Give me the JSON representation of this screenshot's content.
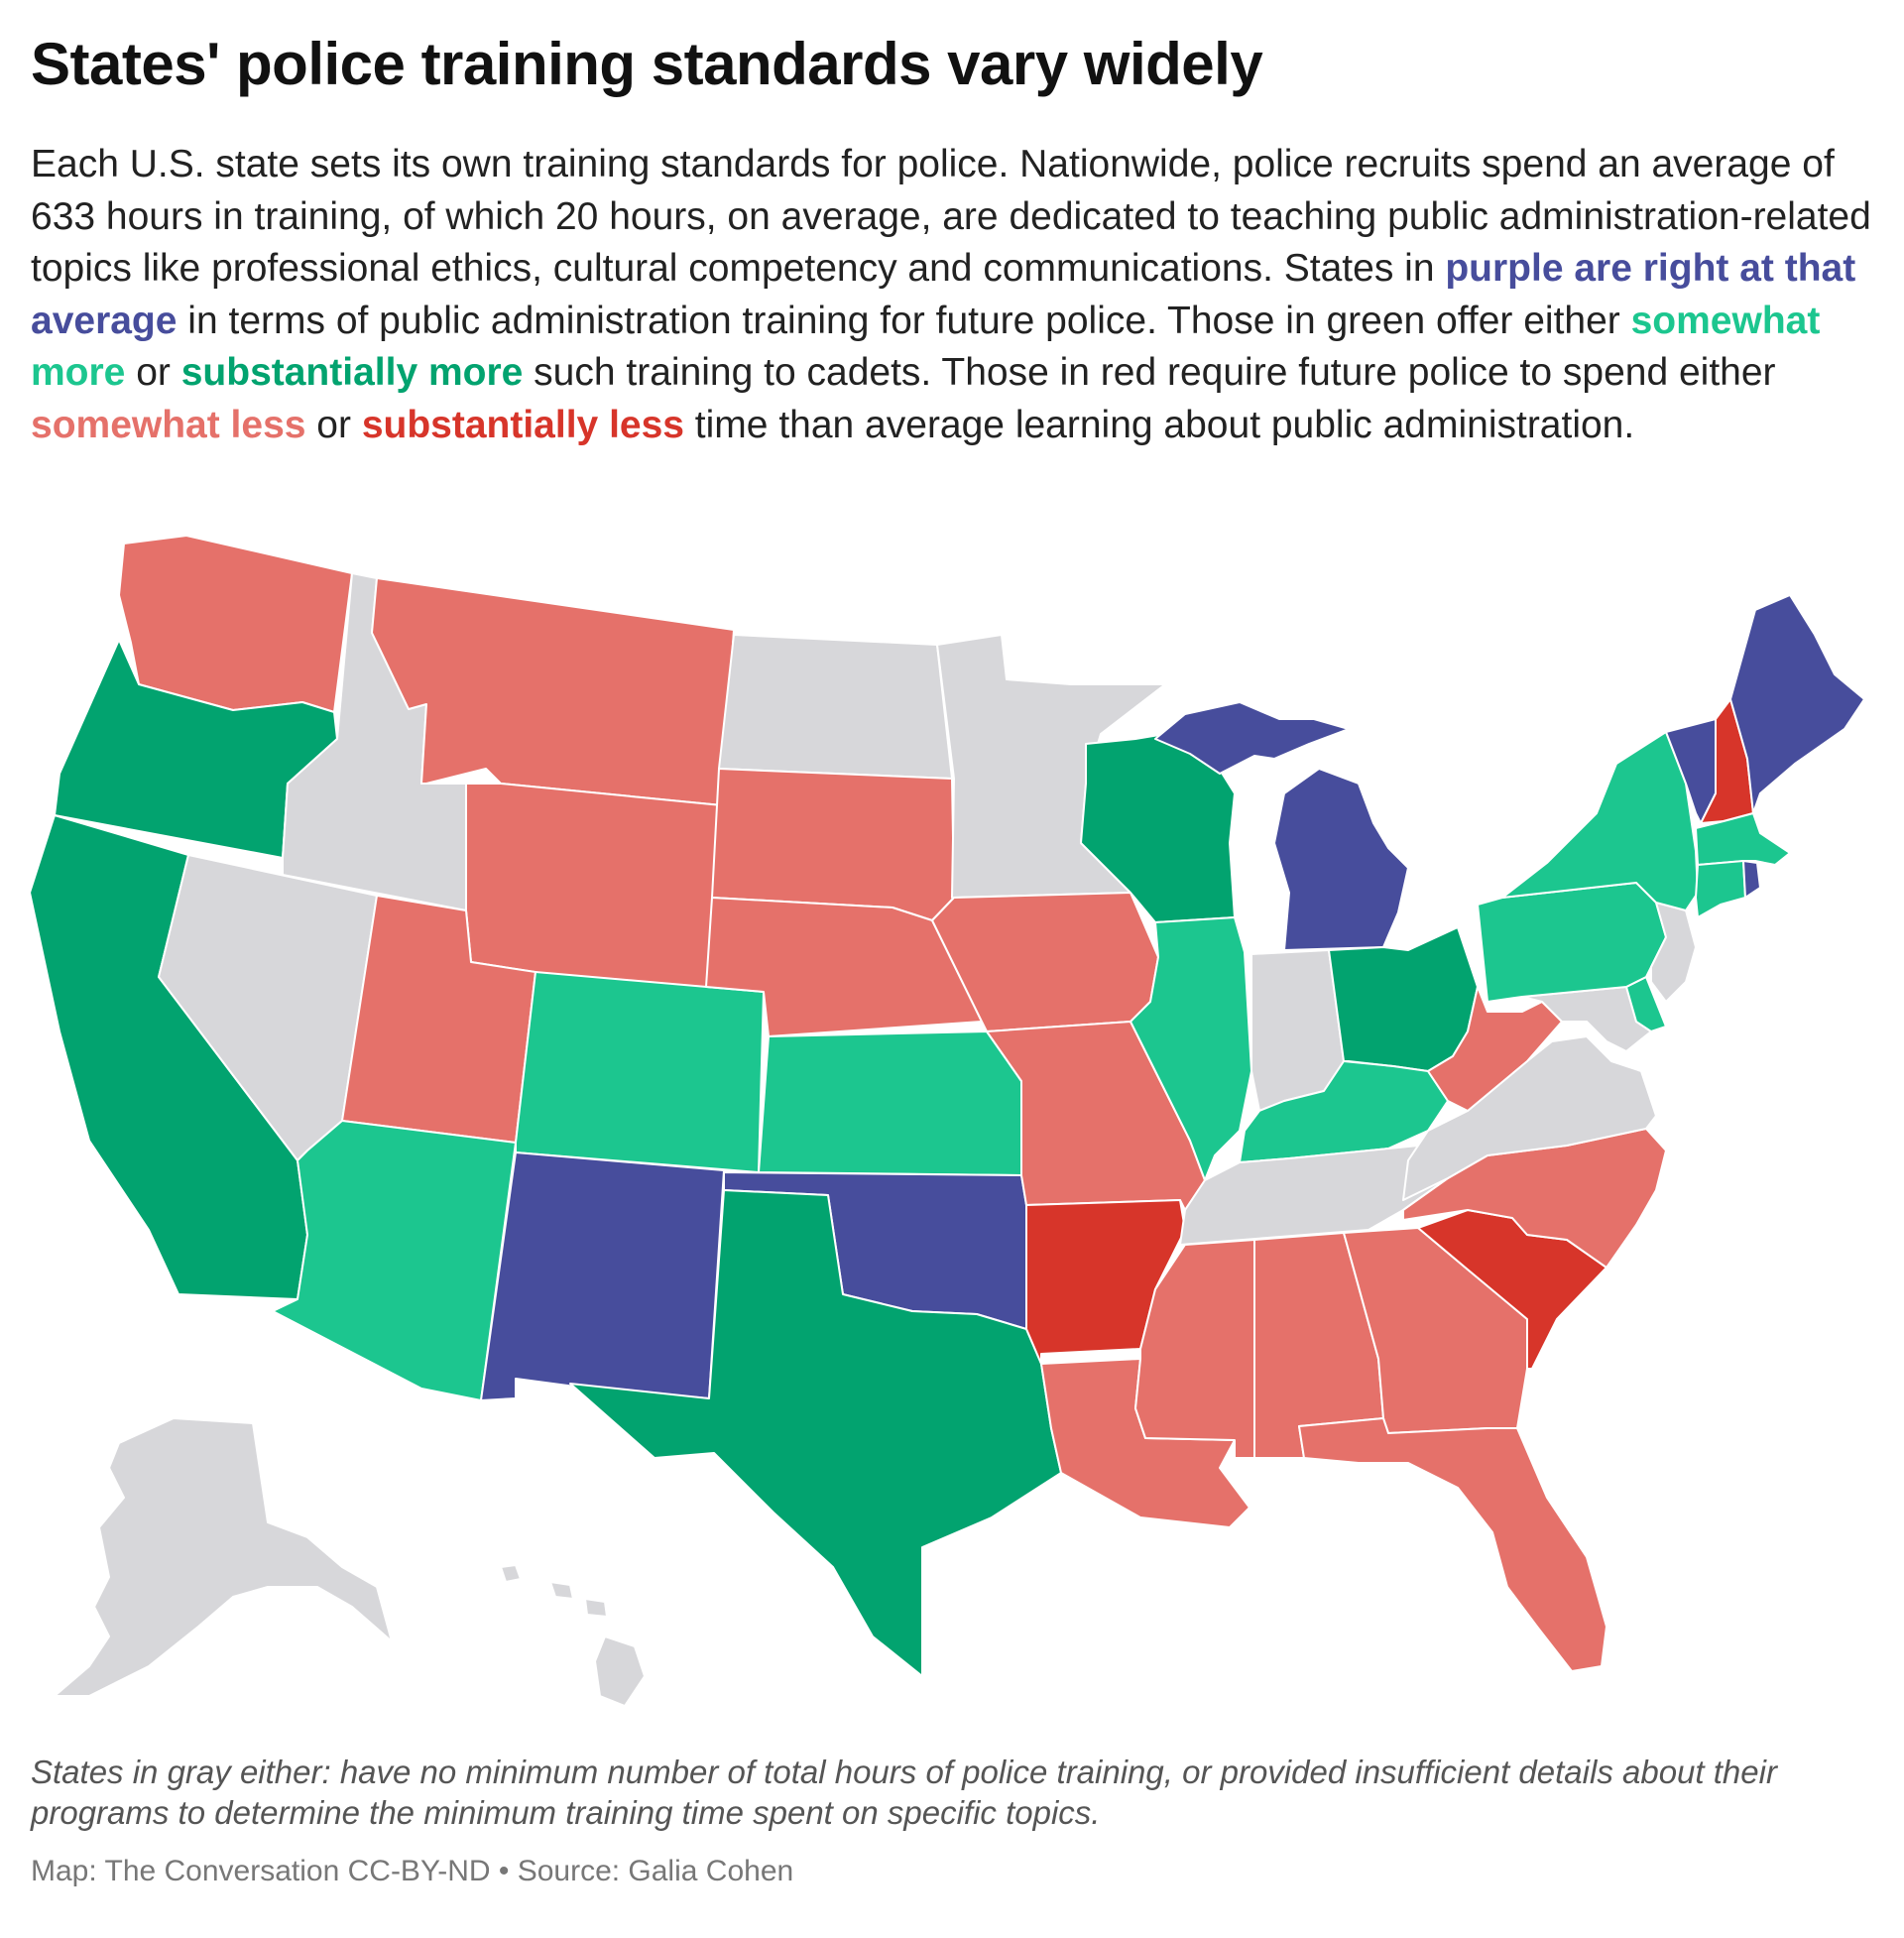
{
  "title": "States' police training standards vary widely",
  "description": {
    "p1": "Each U.S. state sets its own training standards for police. Nationwide, police recruits spend an average of 633 hours in training, of which 20 hours, on average, are dedicated to teaching public administration-related topics like professional ethics, cultural competency and communications. States in ",
    "purple": "purple are right at that average",
    "p2": " in terms of public administration training for future police. Those in green offer either ",
    "somewhat_more": "somewhat more",
    "p3": " or ",
    "substantially_more": "substantially more",
    "p4": " such training to cadets. Those in red require future police to spend either ",
    "somewhat_less": "somewhat less",
    "p5": " or ",
    "substantially_less": "substantially less",
    "p6": " time than average learning about public administration."
  },
  "note": "States in gray either: have no minimum number of total hours of police training, or provided insufficient details about their programs to determine the minimum training time spent on specific topics.",
  "credit": "Map: The Conversation CC-BY-ND • Source: Galia Cohen",
  "colors": {
    "purple": "#474d9c",
    "somewhat_more": "#1cc68f",
    "substantially_more": "#02a36f",
    "somewhat_less": "#e5716a",
    "substantially_less": "#d7352a",
    "gray": "#d7d7da"
  },
  "map_data": {
    "categories": [
      "purple",
      "somewhat_more",
      "substantially_more",
      "somewhat_less",
      "substantially_less",
      "gray"
    ],
    "states": [
      {
        "id": "washington",
        "category": "somewhat_less"
      },
      {
        "id": "oregon",
        "category": "substantially_more"
      },
      {
        "id": "california",
        "category": "substantially_more"
      },
      {
        "id": "idaho",
        "category": "gray"
      },
      {
        "id": "nevada",
        "category": "gray"
      },
      {
        "id": "montana",
        "category": "somewhat_less"
      },
      {
        "id": "wyoming",
        "category": "somewhat_less"
      },
      {
        "id": "utah",
        "category": "somewhat_less"
      },
      {
        "id": "arizona",
        "category": "somewhat_more"
      },
      {
        "id": "colorado",
        "category": "somewhat_more"
      },
      {
        "id": "new-mexico",
        "category": "purple"
      },
      {
        "id": "north-dakota",
        "category": "gray"
      },
      {
        "id": "south-dakota",
        "category": "somewhat_less"
      },
      {
        "id": "nebraska",
        "category": "somewhat_less"
      },
      {
        "id": "kansas",
        "category": "somewhat_more"
      },
      {
        "id": "oklahoma",
        "category": "purple"
      },
      {
        "id": "texas",
        "category": "substantially_more"
      },
      {
        "id": "minnesota",
        "category": "gray"
      },
      {
        "id": "iowa",
        "category": "somewhat_less"
      },
      {
        "id": "missouri",
        "category": "somewhat_less"
      },
      {
        "id": "arkansas",
        "category": "substantially_less"
      },
      {
        "id": "louisiana",
        "category": "somewhat_less"
      },
      {
        "id": "wisconsin",
        "category": "substantially_more"
      },
      {
        "id": "illinois",
        "category": "somewhat_more"
      },
      {
        "id": "michigan",
        "category": "purple"
      },
      {
        "id": "indiana",
        "category": "gray"
      },
      {
        "id": "ohio",
        "category": "substantially_more"
      },
      {
        "id": "kentucky",
        "category": "somewhat_more"
      },
      {
        "id": "tennessee",
        "category": "gray"
      },
      {
        "id": "mississippi",
        "category": "somewhat_less"
      },
      {
        "id": "alabama",
        "category": "somewhat_less"
      },
      {
        "id": "georgia",
        "category": "somewhat_less"
      },
      {
        "id": "florida",
        "category": "somewhat_less"
      },
      {
        "id": "south-carolina",
        "category": "substantially_less"
      },
      {
        "id": "north-carolina",
        "category": "somewhat_less"
      },
      {
        "id": "virginia",
        "category": "gray"
      },
      {
        "id": "west-virginia",
        "category": "somewhat_less"
      },
      {
        "id": "maryland",
        "category": "gray"
      },
      {
        "id": "delaware",
        "category": "somewhat_more"
      },
      {
        "id": "pennsylvania",
        "category": "somewhat_more"
      },
      {
        "id": "new-jersey",
        "category": "gray"
      },
      {
        "id": "new-york",
        "category": "somewhat_more"
      },
      {
        "id": "connecticut",
        "category": "somewhat_more"
      },
      {
        "id": "rhode-island",
        "category": "purple"
      },
      {
        "id": "massachusetts",
        "category": "somewhat_more"
      },
      {
        "id": "vermont",
        "category": "purple"
      },
      {
        "id": "new-hampshire",
        "category": "substantially_less"
      },
      {
        "id": "maine",
        "category": "purple"
      },
      {
        "id": "alaska",
        "category": "gray"
      },
      {
        "id": "hawaii",
        "category": "gray"
      }
    ]
  }
}
